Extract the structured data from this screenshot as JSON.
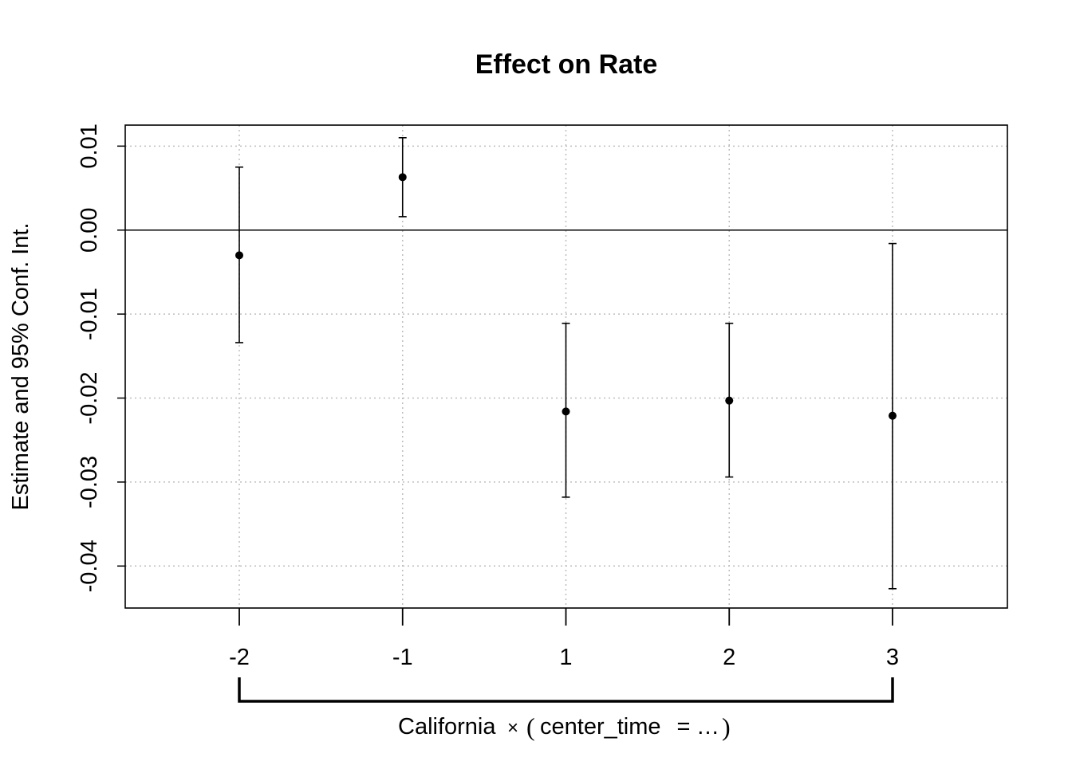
{
  "chart_data": {
    "type": "scatter",
    "title": "Effect on Rate",
    "ylabel": "Estimate and 95% Conf. Int.",
    "xlabel": "California × (center_time = …)",
    "xlabel_parts": {
      "prefix": "California",
      "times": "×",
      "open": "(",
      "var": "center_time",
      "eq": "=",
      "ellipsis": "…",
      "close": ")"
    },
    "categories": [
      "-2",
      "-1",
      "1",
      "2",
      "3"
    ],
    "estimates": [
      -0.003,
      0.0063,
      -0.0216,
      -0.0203,
      -0.0221
    ],
    "ci_low": [
      -0.0134,
      0.0016,
      -0.0318,
      -0.0294,
      -0.0427
    ],
    "ci_high": [
      0.0075,
      0.011,
      -0.0111,
      -0.0111,
      -0.0016
    ],
    "yticks": [
      "-0.04",
      "-0.03",
      "-0.02",
      "-0.01",
      "0.00",
      "0.01"
    ],
    "ylim": [
      -0.045,
      0.0125
    ],
    "reference_line": 0,
    "grid": true,
    "point_color": "#000000",
    "grid_color": "#bebebe"
  }
}
